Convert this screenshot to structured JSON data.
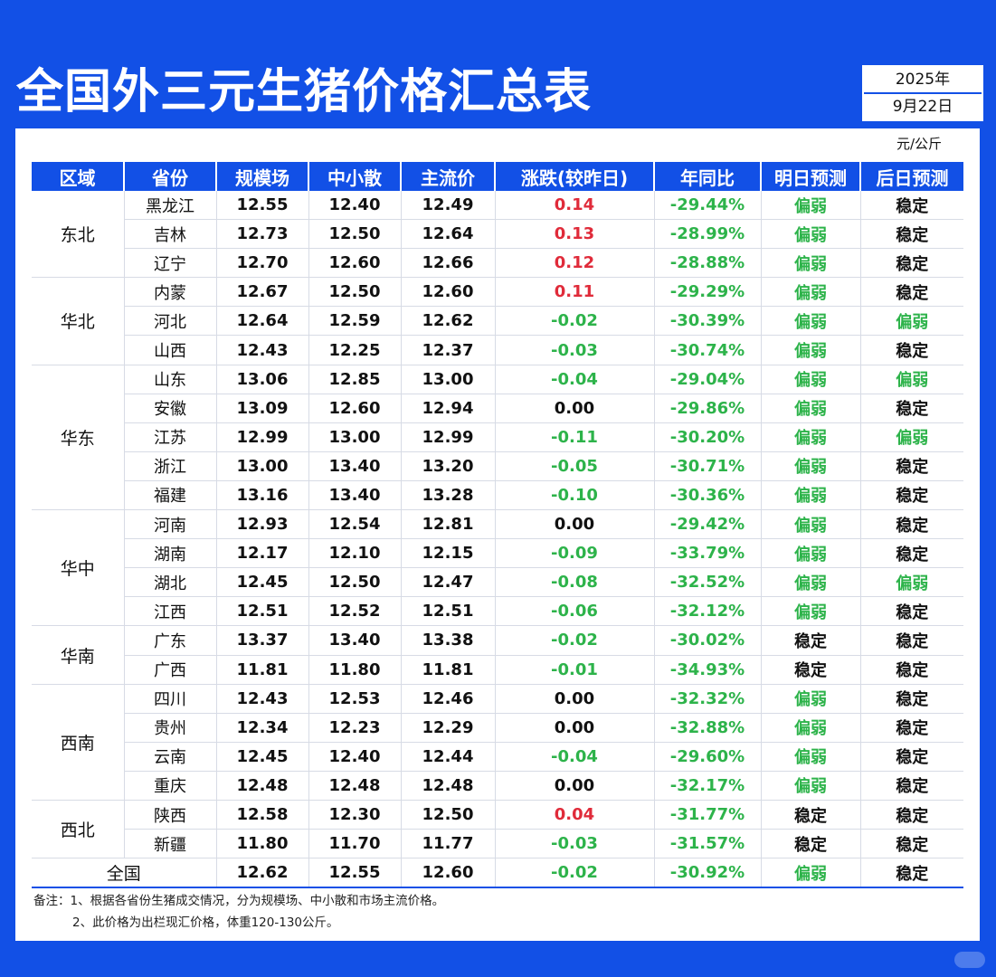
{
  "title": "全国外三元生猪价格汇总表",
  "date": {
    "year": "2025年",
    "day": "9月22日"
  },
  "unit": "元/公斤",
  "colors": {
    "primary": "#1250e6",
    "up": "#e02b3a",
    "down": "#2db34a"
  },
  "headers": [
    "区域",
    "省份",
    "规模场",
    "中小散",
    "主流价",
    "涨跌(较昨日)",
    "年同比",
    "明日预测",
    "后日预测"
  ],
  "regions": [
    {
      "name": "东北",
      "rows": [
        {
          "province": "黑龙江",
          "scale": "12.55",
          "small": "12.40",
          "main": "12.49",
          "change": "0.14",
          "yoy": "-29.44%",
          "tomorrow": "偏弱",
          "after": "稳定"
        },
        {
          "province": "吉林",
          "scale": "12.73",
          "small": "12.50",
          "main": "12.64",
          "change": "0.13",
          "yoy": "-28.99%",
          "tomorrow": "偏弱",
          "after": "稳定"
        },
        {
          "province": "辽宁",
          "scale": "12.70",
          "small": "12.60",
          "main": "12.66",
          "change": "0.12",
          "yoy": "-28.88%",
          "tomorrow": "偏弱",
          "after": "稳定"
        }
      ]
    },
    {
      "name": "华北",
      "rows": [
        {
          "province": "内蒙",
          "scale": "12.67",
          "small": "12.50",
          "main": "12.60",
          "change": "0.11",
          "yoy": "-29.29%",
          "tomorrow": "偏弱",
          "after": "稳定"
        },
        {
          "province": "河北",
          "scale": "12.64",
          "small": "12.59",
          "main": "12.62",
          "change": "-0.02",
          "yoy": "-30.39%",
          "tomorrow": "偏弱",
          "after": "偏弱"
        },
        {
          "province": "山西",
          "scale": "12.43",
          "small": "12.25",
          "main": "12.37",
          "change": "-0.03",
          "yoy": "-30.74%",
          "tomorrow": "偏弱",
          "after": "稳定"
        }
      ]
    },
    {
      "name": "华东",
      "rows": [
        {
          "province": "山东",
          "scale": "13.06",
          "small": "12.85",
          "main": "13.00",
          "change": "-0.04",
          "yoy": "-29.04%",
          "tomorrow": "偏弱",
          "after": "偏弱"
        },
        {
          "province": "安徽",
          "scale": "13.09",
          "small": "12.60",
          "main": "12.94",
          "change": "0.00",
          "yoy": "-29.86%",
          "tomorrow": "偏弱",
          "after": "稳定"
        },
        {
          "province": "江苏",
          "scale": "12.99",
          "small": "13.00",
          "main": "12.99",
          "change": "-0.11",
          "yoy": "-30.20%",
          "tomorrow": "偏弱",
          "after": "偏弱"
        },
        {
          "province": "浙江",
          "scale": "13.00",
          "small": "13.40",
          "main": "13.20",
          "change": "-0.05",
          "yoy": "-30.71%",
          "tomorrow": "偏弱",
          "after": "稳定"
        },
        {
          "province": "福建",
          "scale": "13.16",
          "small": "13.40",
          "main": "13.28",
          "change": "-0.10",
          "yoy": "-30.36%",
          "tomorrow": "偏弱",
          "after": "稳定"
        }
      ]
    },
    {
      "name": "华中",
      "rows": [
        {
          "province": "河南",
          "scale": "12.93",
          "small": "12.54",
          "main": "12.81",
          "change": "0.00",
          "yoy": "-29.42%",
          "tomorrow": "偏弱",
          "after": "稳定"
        },
        {
          "province": "湖南",
          "scale": "12.17",
          "small": "12.10",
          "main": "12.15",
          "change": "-0.09",
          "yoy": "-33.79%",
          "tomorrow": "偏弱",
          "after": "稳定"
        },
        {
          "province": "湖北",
          "scale": "12.45",
          "small": "12.50",
          "main": "12.47",
          "change": "-0.08",
          "yoy": "-32.52%",
          "tomorrow": "偏弱",
          "after": "偏弱"
        },
        {
          "province": "江西",
          "scale": "12.51",
          "small": "12.52",
          "main": "12.51",
          "change": "-0.06",
          "yoy": "-32.12%",
          "tomorrow": "偏弱",
          "after": "稳定"
        }
      ]
    },
    {
      "name": "华南",
      "rows": [
        {
          "province": "广东",
          "scale": "13.37",
          "small": "13.40",
          "main": "13.38",
          "change": "-0.02",
          "yoy": "-30.02%",
          "tomorrow": "稳定",
          "after": "稳定"
        },
        {
          "province": "广西",
          "scale": "11.81",
          "small": "11.80",
          "main": "11.81",
          "change": "-0.01",
          "yoy": "-34.93%",
          "tomorrow": "稳定",
          "after": "稳定"
        }
      ]
    },
    {
      "name": "西南",
      "rows": [
        {
          "province": "四川",
          "scale": "12.43",
          "small": "12.53",
          "main": "12.46",
          "change": "0.00",
          "yoy": "-32.32%",
          "tomorrow": "偏弱",
          "after": "稳定"
        },
        {
          "province": "贵州",
          "scale": "12.34",
          "small": "12.23",
          "main": "12.29",
          "change": "0.00",
          "yoy": "-32.88%",
          "tomorrow": "偏弱",
          "after": "稳定"
        },
        {
          "province": "云南",
          "scale": "12.45",
          "small": "12.40",
          "main": "12.44",
          "change": "-0.04",
          "yoy": "-29.60%",
          "tomorrow": "偏弱",
          "after": "稳定"
        },
        {
          "province": "重庆",
          "scale": "12.48",
          "small": "12.48",
          "main": "12.48",
          "change": "0.00",
          "yoy": "-32.17%",
          "tomorrow": "偏弱",
          "after": "稳定"
        }
      ]
    },
    {
      "name": "西北",
      "rows": [
        {
          "province": "陕西",
          "scale": "12.58",
          "small": "12.30",
          "main": "12.50",
          "change": "0.04",
          "yoy": "-31.77%",
          "tomorrow": "稳定",
          "after": "稳定"
        },
        {
          "province": "新疆",
          "scale": "11.80",
          "small": "11.70",
          "main": "11.77",
          "change": "-0.03",
          "yoy": "-31.57%",
          "tomorrow": "稳定",
          "after": "稳定"
        }
      ]
    }
  ],
  "national": {
    "label": "全国",
    "scale": "12.62",
    "small": "12.55",
    "main": "12.60",
    "change": "-0.02",
    "yoy": "-30.92%",
    "tomorrow": "偏弱",
    "after": "稳定"
  },
  "notes": [
    "备注：1、根据各省份生猪成交情况，分为规模场、中小散和市场主流价格。",
    "2、此价格为出栏现汇价格，体重120-130公斤。"
  ]
}
